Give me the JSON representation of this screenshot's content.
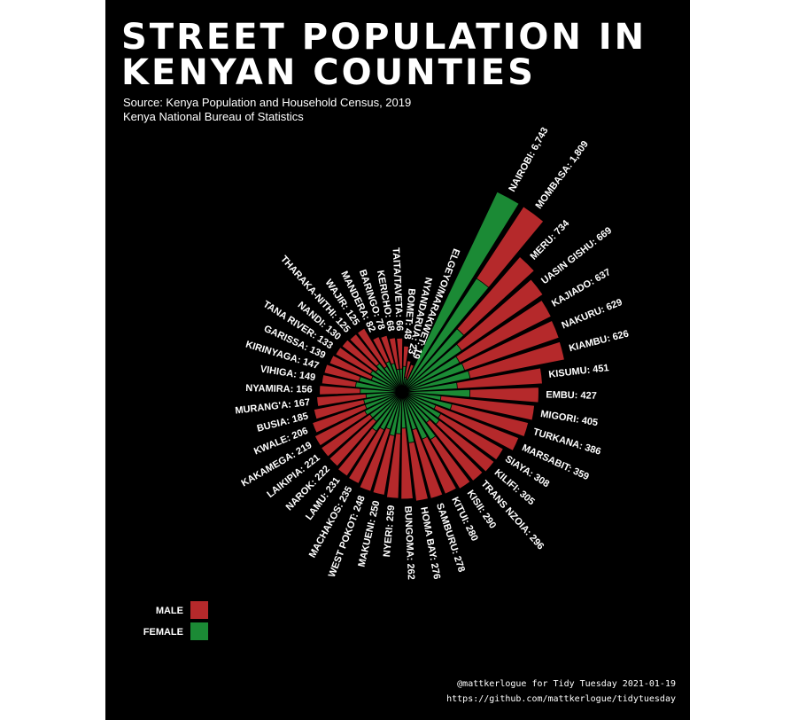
{
  "title": "Street Population in Kenyan Counties",
  "subtitle": "Source: Kenya Population and Household Census, 2019\nKenya National Bureau of Statistics",
  "caption": "@mattkerlogue for Tidy Tuesday 2021-01-19\nhttps://github.com/mattkerlogue/tidytuesday",
  "colors": {
    "background": "#000000",
    "male": "#b5292b",
    "female": "#1b8a35",
    "text": "#ffffff"
  },
  "legend": {
    "position": "bottom-left",
    "items": [
      {
        "label": "MALE",
        "color": "#b5292b"
      },
      {
        "label": "FEMALE",
        "color": "#1b8a35"
      }
    ]
  },
  "chart_data": {
    "type": "bar",
    "coord": "polar",
    "scale": "square-root",
    "categories": [
      "NAIROBI",
      "MOMBASA",
      "MERU",
      "UASIN GISHU",
      "KAJIADO",
      "NAKURU",
      "KIAMBU",
      "KISUMU",
      "EMBU",
      "MIGORI",
      "TURKANA",
      "MARSABIT",
      "SIAYA",
      "KILIFI",
      "TRANS NZOIA",
      "KISII",
      "KITUI",
      "SAMBURU",
      "HOMA BAY",
      "BUNGOMA",
      "NYERI",
      "MAKUENI",
      "WEST POKOT",
      "MACHAKOS",
      "LAMU",
      "NAROK",
      "LAIKIPIA",
      "KAKAMEGA",
      "KWALE",
      "BUSIA",
      "MURANG'A",
      "NYAMIRA",
      "VIHIGA",
      "KIRINYAGA",
      "GARISSA",
      "TANA RIVER",
      "NANDI",
      "THARAKA-NITHI",
      "WAJIR",
      "MANDERA",
      "BARINGO",
      "KERICHO",
      "TAITA/TAVETA",
      "BOMET",
      "NYANDARUA",
      "ELGEYO/MARAKWET"
    ],
    "labels": [
      "NAIROBI: 6,743",
      "MOMBASA: 1,809",
      "MERU: 734",
      "UASIN GISHU: 669",
      "KAJIADO: 637",
      "NAKURU: 629",
      "KIAMBU: 626",
      "KISUMU: 451",
      "EMBU: 427",
      "MIGORI: 405",
      "TURKANA: 386",
      "MARSABIT: 359",
      "SIAYA: 308",
      "KILIFI: 305",
      "TRANS NZOIA: 296",
      "KISII: 290",
      "KITUI: 280",
      "SAMBURU: 278",
      "HOMA BAY: 276",
      "BUNGOMA: 262",
      "NYERI: 259",
      "MAKUENI: 250",
      "WEST POKOT: 248",
      "MACHAKOS: 235",
      "LAMU: 231",
      "NAROK: 222",
      "LAIKIPIA: 221",
      "KAKAMEGA: 219",
      "KWALE: 206",
      "BUSIA: 185",
      "MURANG'A: 167",
      "NYAMIRA: 156",
      "VIHIGA: 149",
      "KIRINYAGA: 147",
      "GARISSA: 139",
      "TANA RIVER: 133",
      "NANDI: 130",
      "THARAKA-NITHI: 125",
      "WAJIR: 125",
      "MANDERA: 82",
      "BARINGO: 78",
      "KERICHO: 68",
      "TAITA/TAVETA: 66",
      "BOMET: 48",
      "NYANDARUA: 23",
      "ELGEYO/MARAKWET: 19"
    ],
    "totals": [
      6743,
      1809,
      734,
      669,
      637,
      629,
      626,
      451,
      427,
      405,
      386,
      359,
      308,
      305,
      296,
      290,
      280,
      278,
      276,
      262,
      259,
      250,
      248,
      235,
      231,
      222,
      221,
      219,
      206,
      185,
      167,
      156,
      149,
      147,
      139,
      133,
      130,
      125,
      125,
      82,
      78,
      68,
      66,
      48,
      23,
      19
    ],
    "series": [
      {
        "name": "MALE",
        "values": [
          6743,
          1809,
          734,
          669,
          637,
          629,
          626,
          451,
          427,
          405,
          386,
          359,
          308,
          305,
          296,
          290,
          280,
          278,
          276,
          262,
          259,
          250,
          248,
          235,
          231,
          222,
          221,
          219,
          206,
          185,
          167,
          156,
          149,
          147,
          139,
          133,
          130,
          125,
          125,
          82,
          78,
          68,
          66,
          48,
          23,
          19
        ]
      },
      {
        "name": "FEMALE",
        "values": [
          1400,
          420,
          160,
          120,
          95,
          100,
          110,
          70,
          105,
          35,
          60,
          30,
          45,
          50,
          35,
          70,
          60,
          35,
          60,
          30,
          40,
          45,
          35,
          40,
          50,
          35,
          35,
          40,
          35,
          35,
          30,
          40,
          50,
          45,
          25,
          30,
          25,
          30,
          20,
          25,
          20,
          12,
          12,
          15,
          5,
          4
        ]
      }
    ]
  }
}
